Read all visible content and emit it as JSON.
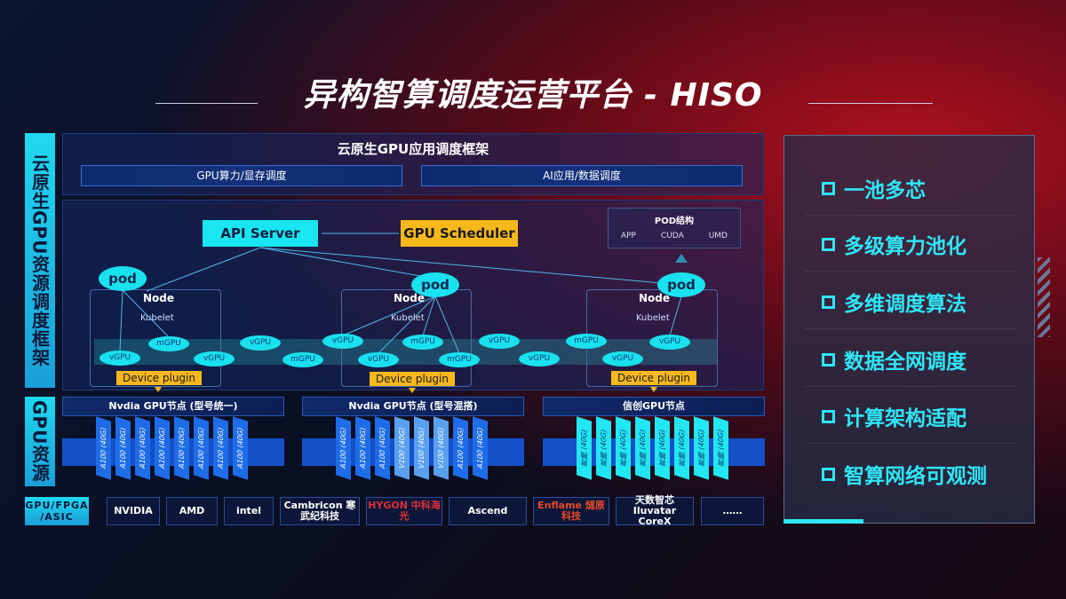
{
  "title": "异构智算调度运营平台 - HISO",
  "side_labels": {
    "framework": "云原生GPU资源调度框架",
    "resources": "GPU资源"
  },
  "framework": {
    "title": "云原生GPU应用调度框架",
    "bar_left": "GPU算力/显存调度",
    "bar_right": "AI应用/数据调度"
  },
  "diagram": {
    "api_server": "API Server",
    "gpu_scheduler": "GPU Scheduler",
    "pod_structure": {
      "title": "POD结构",
      "items": [
        "APP",
        "CUDA",
        "UMD"
      ]
    },
    "pod": "pod",
    "node": "Node",
    "kubelet": "Kubelet",
    "device_plugin": "Device plugin",
    "gpus": [
      "vGPU",
      "mGPU",
      "vGPU",
      "vGPU",
      "mGPU",
      "vGPU",
      "vGPU",
      "mGPU",
      "mGPU",
      "vGPU",
      "vGPU",
      "mGPU",
      "vGPU",
      "vGPU"
    ]
  },
  "gpu_nodes": [
    {
      "title": "Nvdia GPU节点 (型号统一)",
      "chips": [
        "A100 (40G)",
        "A100 (40G)",
        "A100 (40G)",
        "A100 (40G)",
        "A100 (40G)",
        "A100 (40G)",
        "A100 (40G)",
        "A100 (40G)"
      ]
    },
    {
      "title": "Nvdia GPU节点 (型号混搭)",
      "chips": [
        "A100 (40G)",
        "A100 (40G)",
        "A100 (40G)",
        "V100 (40G)",
        "V100 (40G)",
        "V100 (40G)",
        "A100 (40G)",
        "A100 (40G)"
      ]
    },
    {
      "title": "信创GPU节点",
      "chips": [
        "昇腾 (40G)",
        "昇腾 (40G)",
        "昇腾 (40G)",
        "昇腾 (40G)",
        "昇腾 (40G)",
        "昇腾 (40G)",
        "昇腾 (40G)",
        "昇腾 (40G)"
      ]
    }
  ],
  "vendors": {
    "label": "GPU/FPGA /ASIC",
    "items": [
      "NVIDIA",
      "AMD",
      "intel",
      "Cambricon 寒武纪科技",
      "HYGON 中科海光",
      "Ascend",
      "Enflame 燧原科技",
      "天数智芯 Iluvatar CoreX",
      "……"
    ]
  },
  "features": [
    "一池多芯",
    "多级算力池化",
    "多维调度算法",
    "数据全网调度",
    "计算架构适配",
    "智算网络可观测"
  ],
  "colors": {
    "cyan": "#19e6f0",
    "yellow": "#f7b81b",
    "blue": "#1550c8",
    "red": "#b0101e"
  }
}
